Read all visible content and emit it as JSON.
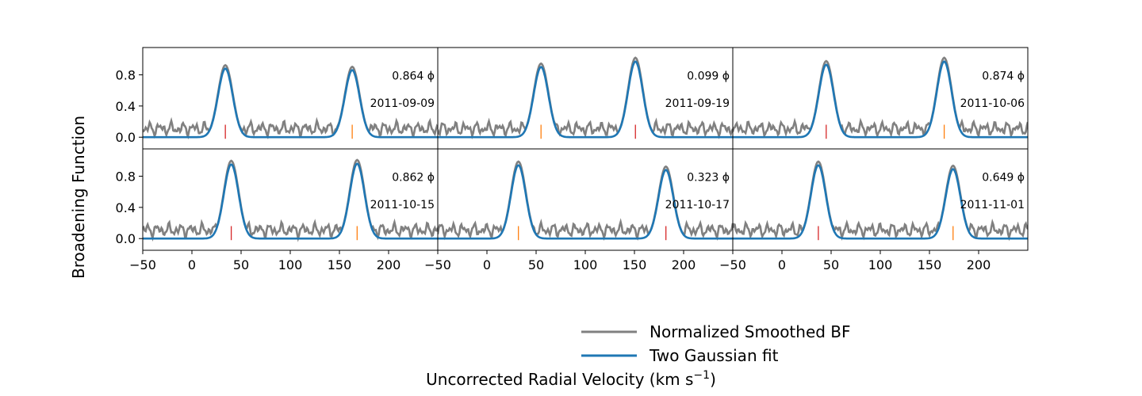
{
  "chart_data": {
    "type": "line",
    "ylabel": "Broadening Function",
    "xlabel": "Uncorrected Radial Velocity (km s",
    "xlabel_unit_exponent": "−1",
    "xlabel_close": ")",
    "xlim": [
      -50,
      250
    ],
    "ylim": [
      -0.15,
      1.15
    ],
    "xticks": [
      -50,
      0,
      50,
      100,
      150,
      200
    ],
    "xtick_labels": [
      "−50",
      "0",
      "50",
      "100",
      "150",
      "200"
    ],
    "yticks": [
      0.0,
      0.4,
      0.8
    ],
    "ytick_labels": [
      "0.0",
      "0.4",
      "0.8"
    ],
    "phase_symbol": "ϕ",
    "legend": [
      {
        "name": "Normalized Smoothed BF",
        "color": "#808080"
      },
      {
        "name": "Two Gaussian fit",
        "color": "#1f77b4"
      }
    ],
    "legend_position": "bottom-center",
    "marker_colors": {
      "primary": "#d62728",
      "secondary": "#ff7f0e"
    },
    "panels": [
      {
        "phase": "0.864",
        "date": "2011-09-09",
        "peaks": [
          {
            "mu": 34,
            "amp": 0.88,
            "sigma": 7.5,
            "marker": "primary"
          },
          {
            "mu": 163,
            "amp": 0.86,
            "sigma": 7.5,
            "marker": "secondary"
          }
        ]
      },
      {
        "phase": "0.099",
        "date": "2011-09-19",
        "peaks": [
          {
            "mu": 55,
            "amp": 0.9,
            "sigma": 7.5,
            "marker": "secondary"
          },
          {
            "mu": 151,
            "amp": 0.97,
            "sigma": 7.5,
            "marker": "primary"
          }
        ]
      },
      {
        "phase": "0.874",
        "date": "2011-10-06",
        "peaks": [
          {
            "mu": 45,
            "amp": 0.93,
            "sigma": 7.5,
            "marker": "primary"
          },
          {
            "mu": 165,
            "amp": 0.97,
            "sigma": 7.5,
            "marker": "secondary"
          }
        ]
      },
      {
        "phase": "0.862",
        "date": "2011-10-15",
        "peaks": [
          {
            "mu": 40,
            "amp": 0.95,
            "sigma": 7.5,
            "marker": "primary"
          },
          {
            "mu": 168,
            "amp": 0.96,
            "sigma": 7.5,
            "marker": "secondary"
          }
        ]
      },
      {
        "phase": "0.323",
        "date": "2011-10-17",
        "peaks": [
          {
            "mu": 32,
            "amp": 0.94,
            "sigma": 7.5,
            "marker": "secondary"
          },
          {
            "mu": 182,
            "amp": 0.88,
            "sigma": 7.5,
            "marker": "primary"
          }
        ]
      },
      {
        "phase": "0.649",
        "date": "2011-11-01",
        "peaks": [
          {
            "mu": 37,
            "amp": 0.94,
            "sigma": 7.5,
            "marker": "primary"
          },
          {
            "mu": 174,
            "amp": 0.89,
            "sigma": 7.5,
            "marker": "secondary"
          }
        ]
      }
    ]
  }
}
